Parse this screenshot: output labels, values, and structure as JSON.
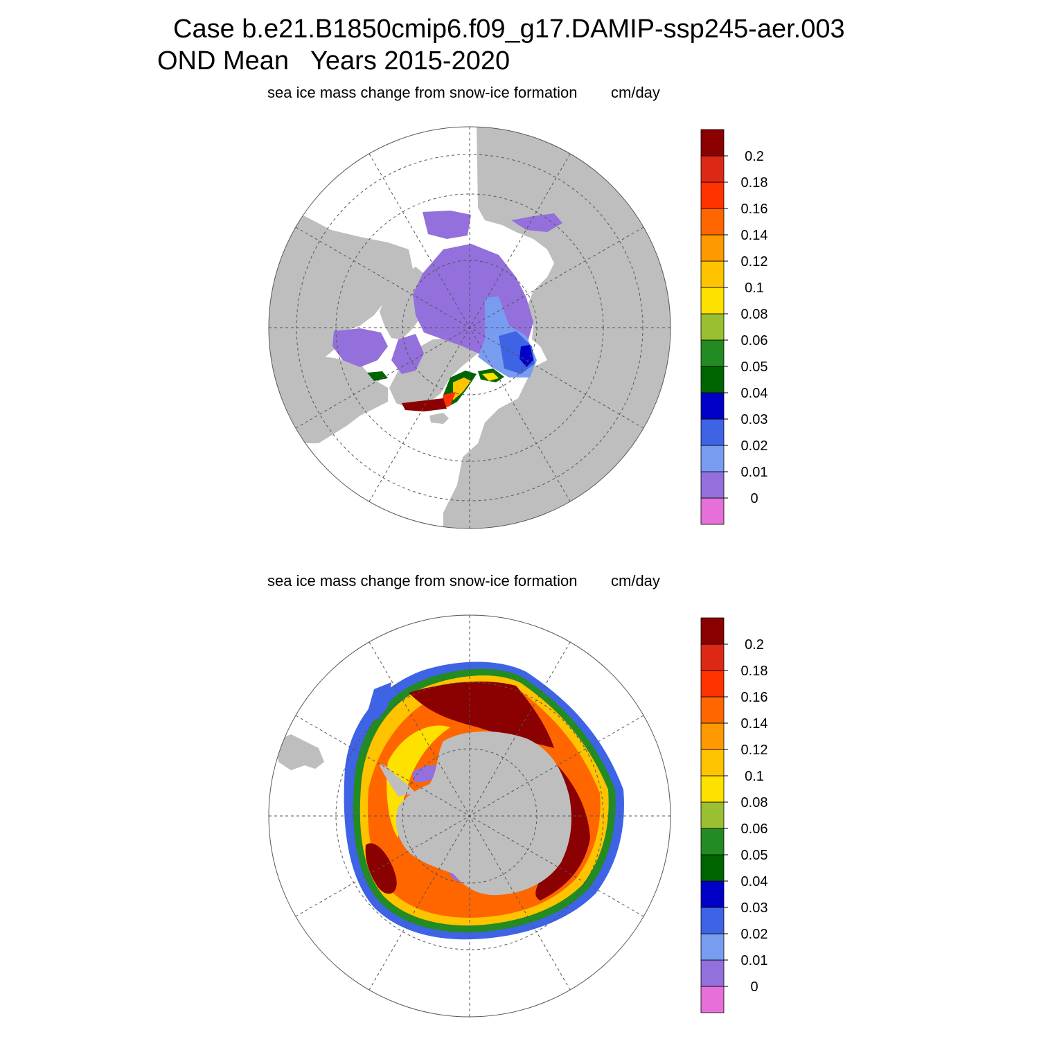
{
  "header": {
    "line1": "Case b.e21.B1850cmip6.f09_g17.DAMIP-ssp245-aer.003",
    "line2": "OND Mean   Years 2015-2020"
  },
  "colors": {
    "land": "#bebebe",
    "ocean": "#ffffff",
    "grid": "#555555"
  },
  "chart_data": [
    {
      "type": "heatmap",
      "title": "sea ice mass change from snow-ice formation",
      "units": "cm/day",
      "region": "Northern Hemisphere polar stereographic",
      "colorbar": {
        "levels": [
          "0",
          "0.01",
          "0.02",
          "0.03",
          "0.04",
          "0.05",
          "0.06",
          "0.08",
          "0.1",
          "0.12",
          "0.14",
          "0.16",
          "0.18",
          "0.2"
        ],
        "colors": [
          "#e66fd9",
          "#9370db",
          "#789cf0",
          "#3e63e5",
          "#0000c8",
          "#006400",
          "#228b22",
          "#9ac031",
          "#ffe100",
          "#ffc300",
          "#ff9900",
          "#ff6600",
          "#ff3300",
          "#dc2814",
          "#8b0000"
        ]
      }
    },
    {
      "type": "heatmap",
      "title": "sea ice mass change from snow-ice formation",
      "units": "cm/day",
      "region": "Southern Hemisphere polar stereographic",
      "colorbar": {
        "levels": [
          "0",
          "0.01",
          "0.02",
          "0.03",
          "0.04",
          "0.05",
          "0.06",
          "0.08",
          "0.1",
          "0.12",
          "0.14",
          "0.16",
          "0.18",
          "0.2"
        ],
        "colors": [
          "#e66fd9",
          "#9370db",
          "#789cf0",
          "#3e63e5",
          "#0000c8",
          "#006400",
          "#228b22",
          "#9ac031",
          "#ffe100",
          "#ffc300",
          "#ff9900",
          "#ff6600",
          "#ff3300",
          "#dc2814",
          "#8b0000"
        ]
      }
    }
  ]
}
